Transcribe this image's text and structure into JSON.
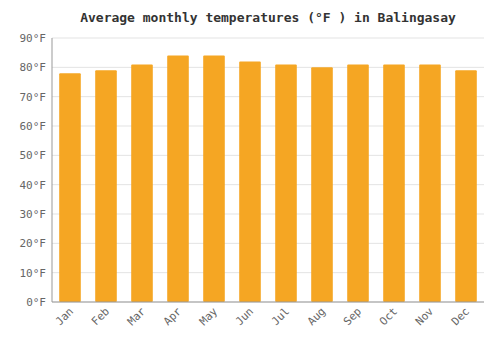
{
  "chart_data": {
    "type": "bar",
    "title": "Average monthly temperatures (°F ) in Balingasay",
    "categories": [
      "Jan",
      "Feb",
      "Mar",
      "Apr",
      "May",
      "Jun",
      "Jul",
      "Aug",
      "Sep",
      "Oct",
      "Nov",
      "Dec"
    ],
    "values": [
      78,
      79,
      81,
      84,
      84,
      82,
      81,
      80,
      81,
      81,
      81,
      79
    ],
    "color": "#F5A623",
    "ylim": [
      0,
      90
    ],
    "yticks": [
      {
        "value": 0,
        "label": "0°F"
      },
      {
        "value": 10,
        "label": "10°F"
      },
      {
        "value": 20,
        "label": "20°F"
      },
      {
        "value": 30,
        "label": "30°F"
      },
      {
        "value": 40,
        "label": "40°F"
      },
      {
        "value": 50,
        "label": "50°F"
      },
      {
        "value": 60,
        "label": "60°F"
      },
      {
        "value": 70,
        "label": "70°F"
      },
      {
        "value": 80,
        "label": "80°F"
      },
      {
        "value": 90,
        "label": "90°F"
      }
    ],
    "grid": true
  }
}
